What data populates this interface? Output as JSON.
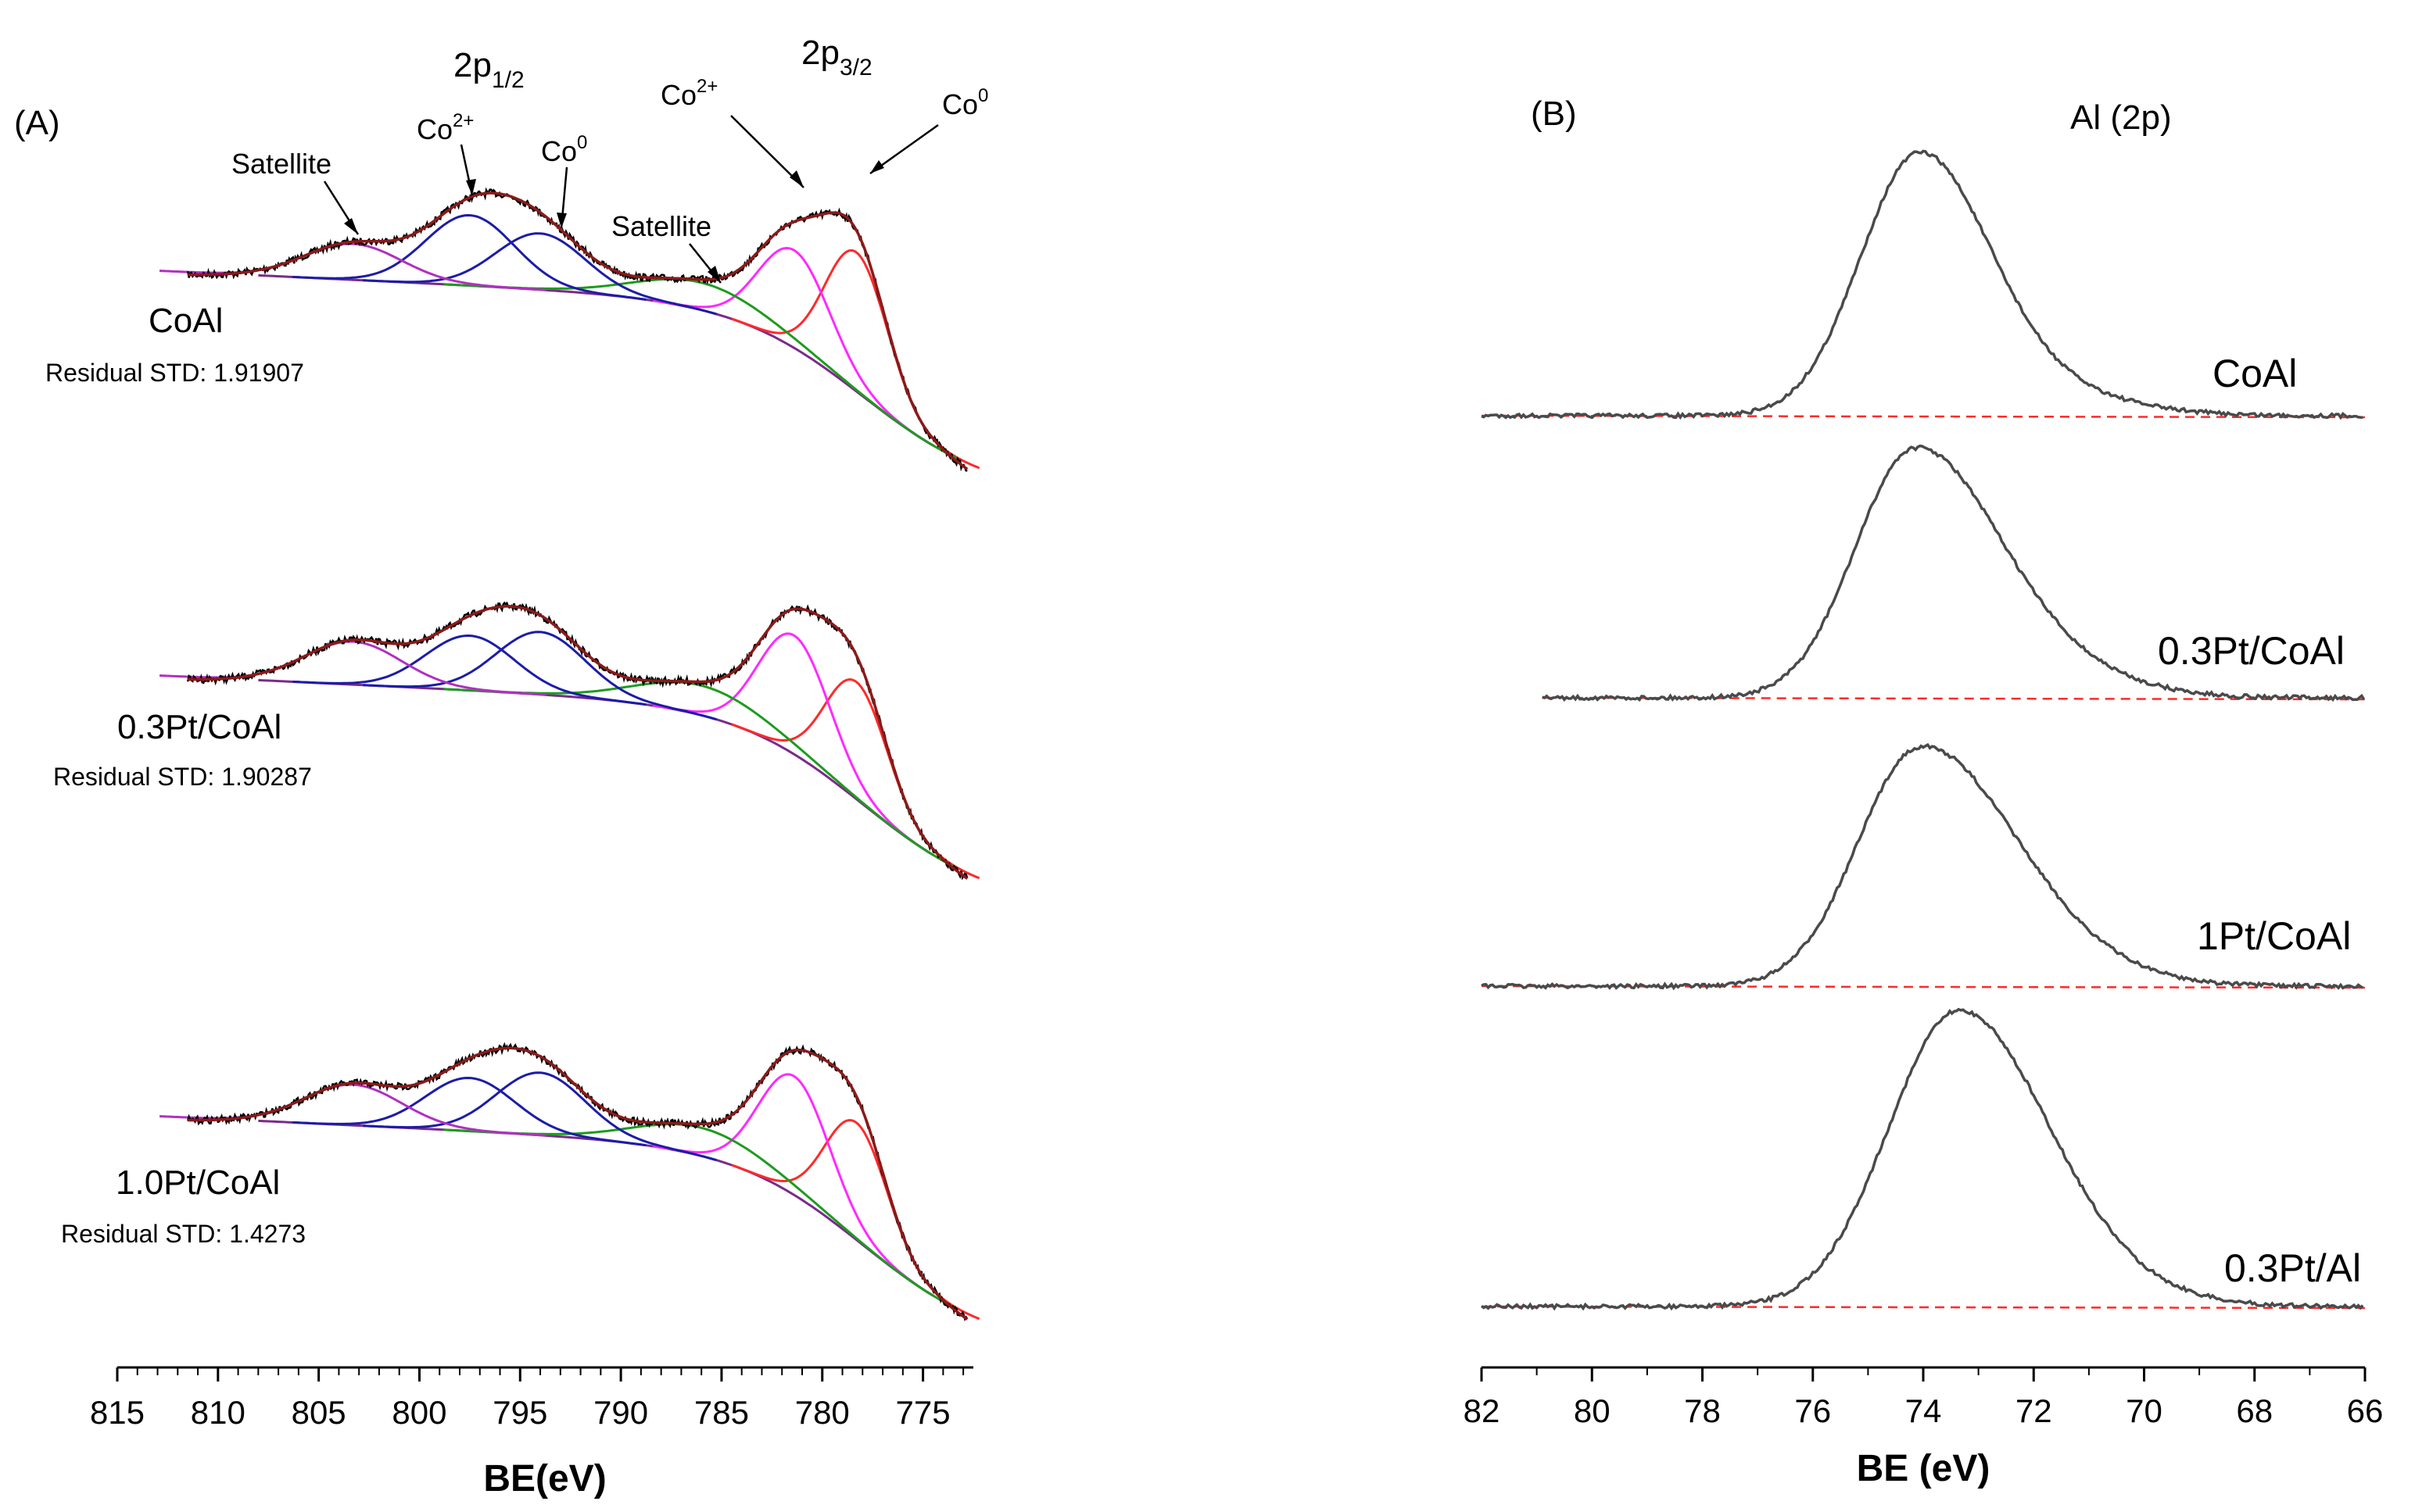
{
  "chart_data": [
    {
      "type": "line",
      "panel": "(A)",
      "title": "",
      "xlabel": "BE(eV)",
      "ylabel": "",
      "x_reversed": true,
      "xlim": [
        815,
        772.5
      ],
      "xticks": [
        815,
        810,
        805,
        800,
        795,
        790,
        785,
        780,
        775
      ],
      "peak_labels": {
        "p12": "2p",
        "p12_sub": "1/2",
        "p32": "2p",
        "p32_sub": "3/2",
        "co2": "Co",
        "co2_sup": "2+",
        "co0": "Co",
        "co0_sup": "0",
        "sat": "Satellite"
      },
      "samples": [
        {
          "name": "CoAl",
          "residual": "Residual STD: 1.91907"
        },
        {
          "name": "0.3Pt/CoAl",
          "residual": "Residual STD: 1.90287"
        },
        {
          "name": "1.0Pt/CoAl",
          "residual": "Residual STD: 1.4273"
        }
      ],
      "component_peaks_eV": {
        "Co0_2p3/2": 778.3,
        "Co2+_2p3/2": 781.4,
        "Satellite_2p3/2": 786.0,
        "Co0_2p1/2": 794.0,
        "Co2+_2p1/2": 797.5,
        "Satellite_2p1/2": 803.3
      },
      "series": [
        {
          "name": "experimental",
          "color": "#000000"
        },
        {
          "name": "envelope",
          "color": "#8b1a1a"
        },
        {
          "name": "Co0",
          "color": "#ff2a2a"
        },
        {
          "name": "Co2+",
          "color": "#ff29ff"
        },
        {
          "name": "Co 2p1/2",
          "color": "#1c1ca8"
        },
        {
          "name": "Satellite 2p3/2",
          "color": "#1e9b1e"
        },
        {
          "name": "Satellite 2p1/2",
          "color": "#b030c0"
        },
        {
          "name": "background",
          "color": "#7a2a8a"
        }
      ]
    },
    {
      "type": "line",
      "panel": "(B)",
      "title": "Al (2p)",
      "xlabel": "BE (eV)",
      "ylabel": "",
      "x_reversed": true,
      "xlim": [
        82,
        66
      ],
      "xticks": [
        82,
        80,
        78,
        76,
        74,
        72,
        70,
        68,
        66
      ],
      "series": [
        {
          "name": "CoAl",
          "peak_eV": 74.1
        },
        {
          "name": "0.3Pt/CoAl",
          "peak_eV": 74.2
        },
        {
          "name": "1Pt/CoAl",
          "peak_eV": 74.1
        },
        {
          "name": "0.3Pt/Al",
          "peak_eV": 73.4
        }
      ],
      "colors": {
        "spectrum": "#4a4a4a",
        "baseline": "#ff2a2a"
      }
    }
  ]
}
